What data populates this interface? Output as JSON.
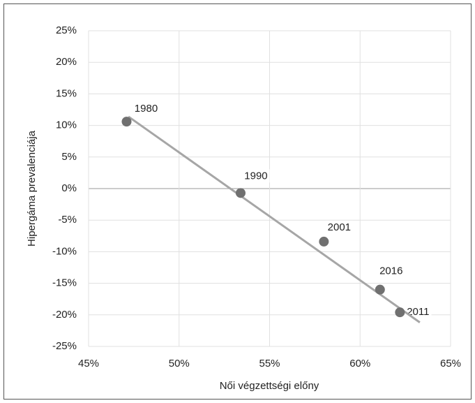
{
  "chart_data": {
    "type": "scatter",
    "x_label": "Női végzettségi előny",
    "y_label": "Hipergáma prevalenciája",
    "series": [
      {
        "color": "#707070",
        "x": [
          47.1,
          53.4,
          58.0,
          61.1,
          62.2
        ],
        "values": [
          10.6,
          -0.7,
          -8.4,
          -16.0,
          -19.6
        ],
        "labels": [
          "1980",
          "1990",
          "2001",
          "2016",
          "2011"
        ]
      }
    ],
    "trendline": {
      "color": "#a6a6a6",
      "x": [
        47.2,
        63.3
      ],
      "values": [
        11.4,
        -21.2
      ]
    },
    "xlim": [
      45,
      65
    ],
    "xticks": [
      {
        "value": 45,
        "label": "45%"
      },
      {
        "value": 50,
        "label": "50%"
      },
      {
        "value": 55,
        "label": "55%"
      },
      {
        "value": 60,
        "label": "60%"
      },
      {
        "value": 65,
        "label": "65%"
      }
    ],
    "ylim": [
      -25,
      25
    ],
    "yticks": [
      {
        "value": -25,
        "label": "-25%"
      },
      {
        "value": -20,
        "label": "-20%"
      },
      {
        "value": -15,
        "label": "-15%"
      },
      {
        "value": -10,
        "label": "-10%"
      },
      {
        "value": -5,
        "label": "-5%"
      },
      {
        "value": 0,
        "label": "0%"
      },
      {
        "value": 5,
        "label": "5%"
      },
      {
        "value": 10,
        "label": "10%"
      },
      {
        "value": 15,
        "label": "15%"
      },
      {
        "value": 20,
        "label": "20%"
      },
      {
        "value": 25,
        "label": "25%"
      }
    ],
    "grid": true
  }
}
